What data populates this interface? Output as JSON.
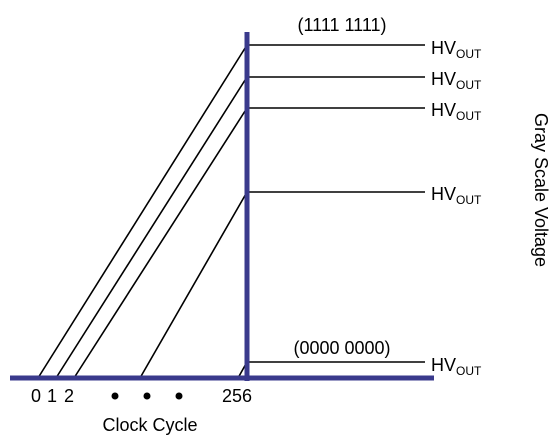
{
  "codes": {
    "top": "(1111 1111)",
    "bottom": "(0000 0000)"
  },
  "outputs": [
    {
      "main": "HV",
      "sub": "OUT"
    },
    {
      "main": "HV",
      "sub": "OUT"
    },
    {
      "main": "HV",
      "sub": "OUT"
    },
    {
      "main": "HV",
      "sub": "OUT"
    },
    {
      "main": "HV",
      "sub": "OUT"
    }
  ],
  "x_axis": {
    "label": "Clock Cycle",
    "ticks": [
      "0",
      "1",
      "2",
      "256"
    ]
  },
  "y_axis": {
    "label": "Gray Scale Voltage"
  }
}
